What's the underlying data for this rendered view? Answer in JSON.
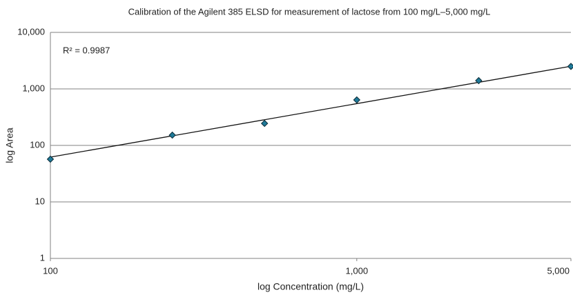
{
  "chart_data": {
    "type": "scatter",
    "title": "Calibration of the Agilent 385 ELSD for measurement of lactose from 100 mg/L–5,000 mg/L",
    "x_label": "log Concentration (mg/L)",
    "y_label": "log Area",
    "annotation": "R² = 0.9987",
    "x": [
      100,
      250,
      500,
      1000,
      2500,
      5000
    ],
    "values": [
      57,
      152,
      245,
      638,
      1400,
      2500
    ],
    "color": "#1f7a99",
    "trendline": {
      "x": [
        100,
        5000
      ],
      "values": [
        62,
        2520
      ],
      "color": "#111111"
    },
    "xlim": [
      100,
      5000
    ],
    "ylim": [
      1,
      10000
    ],
    "xticks": [
      100,
      {
        "value": 1000,
        "label": "1,000"
      },
      {
        "value": 5000,
        "label": "5,000"
      }
    ],
    "yticks": [
      1,
      10,
      100,
      {
        "value": 1000,
        "label": "1,000"
      },
      {
        "value": 10000,
        "label": "10,000"
      }
    ],
    "xscale": "log",
    "yscale": "log",
    "grid": true
  }
}
